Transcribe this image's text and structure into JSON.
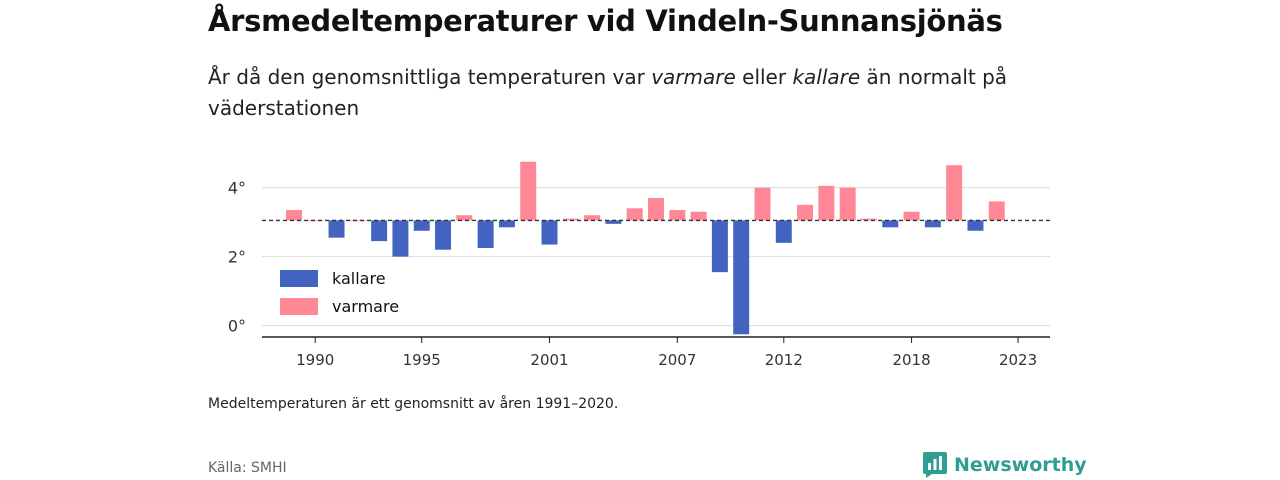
{
  "title": "Årsmedeltemperaturer vid Vindeln-Sunnansjönäs",
  "subtitle": {
    "part1": "År då den genomsnittliga temperaturen var ",
    "warmer_word": "varmare",
    "part2": " eller ",
    "colder_word": "kallare",
    "part3": " än normalt på väderstationen"
  },
  "note": "Medeltemperaturen är ett genomsnitt av åren 1991–2020.",
  "source": "Källa: SMHI",
  "brand": "Newsworthy",
  "colors": {
    "colder": "#4263c0",
    "warmer": "#ff8796",
    "brand": "#2e9e94",
    "grid": "#dddddd",
    "reference": "#333333"
  },
  "chart_data": {
    "type": "bar",
    "reference": 3.05,
    "ylim": [
      -0.3,
      4.8
    ],
    "xlim": [
      1987.5,
      2024.5
    ],
    "y_ticks": [
      0,
      2,
      4
    ],
    "y_tick_labels": [
      "0°",
      "2°",
      "4°"
    ],
    "x_ticks": [
      1990,
      1995,
      2001,
      2007,
      2012,
      2018,
      2023
    ],
    "grid": true,
    "legend": {
      "placement": "bottom-left",
      "items": [
        {
          "label": "kallare",
          "key": "colder"
        },
        {
          "label": "varmare",
          "key": "warmer"
        }
      ]
    },
    "series": [
      {
        "year": 1989,
        "value": 3.35
      },
      {
        "year": 1990,
        "value": 3.05
      },
      {
        "year": 1991,
        "value": 2.55
      },
      {
        "year": 1992,
        "value": 3.05
      },
      {
        "year": 1993,
        "value": 2.45
      },
      {
        "year": 1994,
        "value": 2.0
      },
      {
        "year": 1995,
        "value": 2.75
      },
      {
        "year": 1996,
        "value": 2.2
      },
      {
        "year": 1997,
        "value": 3.2
      },
      {
        "year": 1998,
        "value": 2.25
      },
      {
        "year": 1999,
        "value": 2.85
      },
      {
        "year": 2000,
        "value": 4.75
      },
      {
        "year": 2001,
        "value": 2.35
      },
      {
        "year": 2002,
        "value": 3.1
      },
      {
        "year": 2003,
        "value": 3.2
      },
      {
        "year": 2004,
        "value": 2.95
      },
      {
        "year": 2005,
        "value": 3.4
      },
      {
        "year": 2006,
        "value": 3.7
      },
      {
        "year": 2007,
        "value": 3.35
      },
      {
        "year": 2008,
        "value": 3.3
      },
      {
        "year": 2009,
        "value": 1.55
      },
      {
        "year": 2010,
        "value": -0.25
      },
      {
        "year": 2011,
        "value": 4.0
      },
      {
        "year": 2012,
        "value": 2.4
      },
      {
        "year": 2013,
        "value": 3.5
      },
      {
        "year": 2014,
        "value": 4.05
      },
      {
        "year": 2015,
        "value": 4.0
      },
      {
        "year": 2016,
        "value": 3.1
      },
      {
        "year": 2017,
        "value": 2.85
      },
      {
        "year": 2018,
        "value": 3.3
      },
      {
        "year": 2019,
        "value": 2.85
      },
      {
        "year": 2020,
        "value": 4.65
      },
      {
        "year": 2021,
        "value": 2.75
      },
      {
        "year": 2022,
        "value": 3.6
      }
    ]
  }
}
